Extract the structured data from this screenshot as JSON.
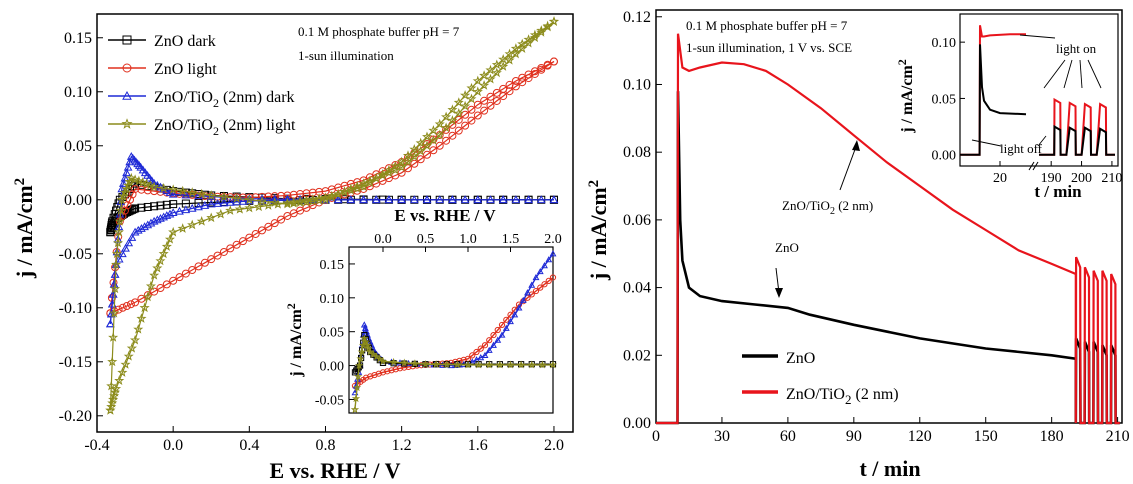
{
  "chart_data": [
    {
      "id": "left-main",
      "type": "scatter",
      "xlabel": "E vs. RHE / V",
      "ylabel": "j / mA/cm²",
      "xlim": [
        -0.4,
        2.1
      ],
      "ylim": [
        -0.215,
        0.172
      ],
      "xticks": [
        "-0.4",
        "0.0",
        "0.4",
        "0.8",
        "1.2",
        "1.6",
        "2.0"
      ],
      "xtick_values": [
        -0.4,
        0.0,
        0.4,
        0.8,
        1.2,
        1.6,
        2.0
      ],
      "yticks": [
        "-0.20",
        "-0.15",
        "-0.10",
        "-0.05",
        "0.00",
        "0.05",
        "0.10",
        "0.15"
      ],
      "ytick_values": [
        -0.2,
        -0.15,
        -0.1,
        -0.05,
        0.0,
        0.05,
        0.1,
        0.15
      ],
      "annotations": [
        "0.1 M phosphate buffer pH = 7",
        "1-sun illumination"
      ],
      "legend_position": "top-left",
      "series": [
        {
          "name": "ZnO dark",
          "color": "#000000",
          "marker": "square",
          "forward": [
            [
              -0.33,
              -0.03
            ],
            [
              -0.3,
              -0.018
            ],
            [
              -0.25,
              -0.012
            ],
            [
              -0.2,
              -0.008
            ],
            [
              0.0,
              -0.004
            ],
            [
              0.4,
              -0.001
            ],
            [
              0.8,
              0.0
            ],
            [
              1.2,
              0.0
            ],
            [
              1.6,
              0.0
            ],
            [
              2.0,
              0.0
            ]
          ],
          "reverse": [
            [
              2.0,
              0.0
            ],
            [
              1.2,
              0.0
            ],
            [
              0.6,
              0.001
            ],
            [
              0.2,
              0.004
            ],
            [
              0.0,
              0.008
            ],
            [
              -0.2,
              0.015
            ],
            [
              -0.28,
              0.0
            ],
            [
              -0.32,
              -0.02
            ],
            [
              -0.33,
              -0.03
            ]
          ]
        },
        {
          "name": "ZnO light",
          "color": "#e0301e",
          "marker": "circle",
          "forward": [
            [
              -0.33,
              -0.105
            ],
            [
              -0.2,
              -0.095
            ],
            [
              0.0,
              -0.075
            ],
            [
              0.2,
              -0.055
            ],
            [
              0.4,
              -0.035
            ],
            [
              0.6,
              -0.015
            ],
            [
              0.8,
              0.0
            ],
            [
              1.0,
              0.01
            ],
            [
              1.2,
              0.025
            ],
            [
              1.4,
              0.05
            ],
            [
              1.6,
              0.078
            ],
            [
              1.8,
              0.105
            ],
            [
              2.0,
              0.128
            ]
          ],
          "reverse": [
            [
              2.0,
              0.128
            ],
            [
              1.8,
              0.11
            ],
            [
              1.6,
              0.088
            ],
            [
              1.4,
              0.06
            ],
            [
              1.2,
              0.035
            ],
            [
              1.0,
              0.018
            ],
            [
              0.8,
              0.008
            ],
            [
              0.6,
              0.004
            ],
            [
              0.4,
              0.002
            ],
            [
              0.2,
              0.003
            ],
            [
              0.0,
              0.006
            ],
            [
              -0.2,
              0.01
            ],
            [
              -0.28,
              -0.02
            ],
            [
              -0.33,
              -0.105
            ]
          ]
        },
        {
          "name": "ZnO/TiO₂ (2nm) dark",
          "color": "#1f2ad6",
          "marker": "triangle",
          "forward": [
            [
              -0.33,
              -0.115
            ],
            [
              -0.3,
              -0.06
            ],
            [
              -0.27,
              0.01
            ],
            [
              -0.22,
              0.04
            ],
            [
              -0.17,
              0.03
            ],
            [
              -0.1,
              0.015
            ],
            [
              0.0,
              0.005
            ],
            [
              0.4,
              0.001
            ],
            [
              0.8,
              0.0
            ],
            [
              1.2,
              0.0
            ],
            [
              1.6,
              0.0
            ],
            [
              2.0,
              0.0
            ]
          ],
          "reverse": [
            [
              2.0,
              0.0
            ],
            [
              1.2,
              0.0
            ],
            [
              0.8,
              0.0
            ],
            [
              0.4,
              -0.001
            ],
            [
              0.2,
              -0.004
            ],
            [
              0.0,
              -0.012
            ],
            [
              -0.1,
              -0.02
            ],
            [
              -0.2,
              -0.03
            ],
            [
              -0.3,
              -0.06
            ],
            [
              -0.33,
              -0.115
            ]
          ]
        },
        {
          "name": "ZnO/TiO₂ (2nm) light",
          "color": "#8c8c1c",
          "marker": "star",
          "forward": [
            [
              -0.33,
              -0.195
            ],
            [
              -0.3,
              -0.06
            ],
            [
              -0.27,
              0.0
            ],
            [
              -0.22,
              0.02
            ],
            [
              -0.1,
              0.012
            ],
            [
              0.2,
              0.004
            ],
            [
              0.6,
              -0.004
            ],
            [
              0.8,
              0.0
            ],
            [
              1.0,
              0.015
            ],
            [
              1.2,
              0.03
            ],
            [
              1.4,
              0.06
            ],
            [
              1.6,
              0.1
            ],
            [
              1.8,
              0.135
            ],
            [
              2.0,
              0.165
            ]
          ],
          "reverse": [
            [
              2.0,
              0.165
            ],
            [
              1.8,
              0.14
            ],
            [
              1.6,
              0.11
            ],
            [
              1.4,
              0.07
            ],
            [
              1.2,
              0.035
            ],
            [
              1.0,
              0.012
            ],
            [
              0.8,
              0.002
            ],
            [
              0.6,
              -0.003
            ],
            [
              0.3,
              -0.01
            ],
            [
              0.0,
              -0.03
            ],
            [
              -0.1,
              -0.07
            ],
            [
              -0.2,
              -0.13
            ],
            [
              -0.3,
              -0.175
            ],
            [
              -0.33,
              -0.195
            ]
          ]
        }
      ]
    },
    {
      "id": "left-inset",
      "type": "scatter",
      "xlabel": "E vs. RHE / V",
      "ylabel": "j / mA/cm²",
      "xlim": [
        -0.4,
        2.0
      ],
      "ylim": [
        -0.07,
        0.175
      ],
      "xticks": [
        "0.0",
        "0.5",
        "1.0",
        "1.5",
        "2.0"
      ],
      "xtick_values": [
        0.0,
        0.5,
        1.0,
        1.5,
        2.0
      ],
      "yticks": [
        "-0.05",
        "0.00",
        "0.05",
        "0.10",
        "0.15"
      ],
      "ytick_values": [
        -0.05,
        0.0,
        0.05,
        0.1,
        0.15
      ],
      "series": [
        {
          "name": "red",
          "color": "#e0301e",
          "marker": "circle",
          "points": [
            [
              -0.33,
              -0.03
            ],
            [
              -0.2,
              -0.018
            ],
            [
              0.0,
              -0.01
            ],
            [
              0.2,
              -0.004
            ],
            [
              0.4,
              0.0
            ],
            [
              0.6,
              0.002
            ],
            [
              0.8,
              0.004
            ],
            [
              1.0,
              0.01
            ],
            [
              1.2,
              0.03
            ],
            [
              1.4,
              0.06
            ],
            [
              1.6,
              0.09
            ],
            [
              1.8,
              0.11
            ],
            [
              2.0,
              0.13
            ]
          ]
        },
        {
          "name": "blue",
          "color": "#1f2ad6",
          "marker": "triangle",
          "points": [
            [
              -0.33,
              -0.04
            ],
            [
              -0.27,
              0.0
            ],
            [
              -0.22,
              0.06
            ],
            [
              -0.17,
              0.04
            ],
            [
              -0.1,
              0.02
            ],
            [
              0.0,
              0.006
            ],
            [
              0.4,
              0.002
            ],
            [
              0.8,
              0.0
            ],
            [
              1.0,
              0.002
            ],
            [
              1.2,
              0.015
            ],
            [
              1.4,
              0.045
            ],
            [
              1.6,
              0.085
            ],
            [
              1.8,
              0.13
            ],
            [
              2.0,
              0.165
            ]
          ]
        },
        {
          "name": "black",
          "color": "#000000",
          "marker": "square",
          "points": [
            [
              -0.33,
              -0.01
            ],
            [
              -0.27,
              0.0
            ],
            [
              -0.22,
              0.045
            ],
            [
              -0.15,
              0.02
            ],
            [
              0.0,
              0.004
            ],
            [
              0.5,
              0.002
            ],
            [
              1.0,
              0.002
            ],
            [
              1.5,
              0.002
            ],
            [
              2.0,
              0.002
            ]
          ]
        },
        {
          "name": "olive",
          "color": "#8c8c1c",
          "marker": "star",
          "points": [
            [
              -0.33,
              -0.065
            ],
            [
              -0.28,
              0.0
            ],
            [
              -0.22,
              0.04
            ],
            [
              -0.15,
              0.02
            ],
            [
              0.0,
              0.006
            ],
            [
              0.5,
              0.002
            ],
            [
              1.0,
              0.001
            ],
            [
              1.5,
              0.001
            ],
            [
              2.0,
              0.001
            ]
          ]
        }
      ]
    },
    {
      "id": "right-main",
      "type": "line",
      "xlabel": "t / min",
      "ylabel": "j / mA/cm²",
      "xlim": [
        0,
        212
      ],
      "ylim": [
        0,
        0.122
      ],
      "xticks": [
        "0",
        "30",
        "60",
        "90",
        "120",
        "150",
        "180",
        "210"
      ],
      "xtick_values": [
        0,
        30,
        60,
        90,
        120,
        150,
        180,
        210
      ],
      "yticks": [
        "0.00",
        "0.02",
        "0.04",
        "0.06",
        "0.08",
        "0.10",
        "0.12"
      ],
      "ytick_values": [
        0.0,
        0.02,
        0.04,
        0.06,
        0.08,
        0.1,
        0.12
      ],
      "annotations": [
        "0.1 M phosphate buffer pH = 7",
        "1-sun illumination, 1 V vs. SCE",
        "ZnO/TiO₂ (2 nm)",
        "ZnO"
      ],
      "legend_position": "bottom-center",
      "series": [
        {
          "name": "ZnO",
          "color": "#000000",
          "points": [
            [
              0,
              0
            ],
            [
              9.8,
              0
            ],
            [
              10,
              0.098
            ],
            [
              11,
              0.06
            ],
            [
              12,
              0.048
            ],
            [
              15,
              0.04
            ],
            [
              20,
              0.0375
            ],
            [
              30,
              0.036
            ],
            [
              45,
              0.035
            ],
            [
              60,
              0.034
            ],
            [
              70,
              0.032
            ],
            [
              90,
              0.029
            ],
            [
              120,
              0.025
            ],
            [
              150,
              0.022
            ],
            [
              180,
              0.02
            ],
            [
              191,
              0.019
            ]
          ]
        },
        {
          "name": "ZnO/TiO₂ (2 nm)",
          "color": "#e8141c",
          "points": [
            [
              0,
              0
            ],
            [
              9.8,
              0
            ],
            [
              10,
              0.115
            ],
            [
              12,
              0.105
            ],
            [
              15,
              0.104
            ],
            [
              20,
              0.105
            ],
            [
              30,
              0.1065
            ],
            [
              40,
              0.106
            ],
            [
              50,
              0.104
            ],
            [
              60,
              0.1
            ],
            [
              75,
              0.093
            ],
            [
              90,
              0.085
            ],
            [
              105,
              0.077
            ],
            [
              120,
              0.07
            ],
            [
              135,
              0.063
            ],
            [
              150,
              0.057
            ],
            [
              165,
              0.051
            ],
            [
              180,
              0.047
            ],
            [
              191,
              0.044
            ]
          ]
        }
      ],
      "chopping": {
        "start": 191,
        "end": 210,
        "period": 4,
        "light_on": 2,
        "red_on": [
          0.046,
          0.043,
          0.042,
          0.042,
          0.041
        ],
        "black_on": [
          0.022,
          0.021,
          0.021,
          0.02,
          0.02
        ]
      }
    },
    {
      "id": "right-inset",
      "type": "line",
      "xlabel": "t / min",
      "ylabel": "j / mA/cm²",
      "ylim": [
        -0.01,
        0.125
      ],
      "xticks": [
        "20",
        "190",
        "200",
        "210"
      ],
      "yticks": [
        "0.00",
        "0.05",
        "0.10"
      ],
      "ytick_values": [
        0.0,
        0.05,
        0.1
      ],
      "annotations": [
        "light on",
        "light off"
      ],
      "segment1": {
        "xlim": [
          0,
          35
        ]
      },
      "segment2": {
        "xlim": [
          185,
          212
        ]
      },
      "series": [
        {
          "name": "ZnO/TiO₂ (2 nm)",
          "color": "#e8141c",
          "seg1": [
            [
              0,
              0
            ],
            [
              9.8,
              0
            ],
            [
              10,
              0.115
            ],
            [
              11,
              0.105
            ],
            [
              12,
              0.105
            ],
            [
              15,
              0.106
            ],
            [
              25,
              0.107
            ],
            [
              33,
              0.107
            ]
          ],
          "seg2_on": [
            0.046,
            0.043,
            0.042,
            0.042
          ]
        },
        {
          "name": "ZnO",
          "color": "#000000",
          "seg1": [
            [
              0,
              0
            ],
            [
              9.8,
              0
            ],
            [
              10,
              0.098
            ],
            [
              11,
              0.06
            ],
            [
              12,
              0.048
            ],
            [
              15,
              0.04
            ],
            [
              20,
              0.037
            ],
            [
              33,
              0.036
            ]
          ],
          "seg2_on": [
            0.022,
            0.021,
            0.021,
            0.02
          ]
        }
      ]
    }
  ],
  "legend_left": [
    {
      "text": "ZnO dark",
      "sub": "",
      "tail": ""
    },
    {
      "text": "ZnO light",
      "sub": "",
      "tail": ""
    },
    {
      "text": "ZnO/TiO",
      "sub": "2",
      "tail": " (2nm) dark"
    },
    {
      "text": "ZnO/TiO",
      "sub": "2",
      "tail": " (2nm) light"
    }
  ],
  "legend_right": [
    {
      "text": "ZnO",
      "sub": "",
      "tail": ""
    },
    {
      "text": "ZnO/TiO",
      "sub": "2",
      "tail": " (2 nm)"
    }
  ],
  "labels": {
    "left_note1": "0.1 M phosphate buffer pH = 7",
    "left_note2": "1-sun illumination",
    "right_note1": "0.1 M phosphate buffer pH = 7",
    "right_note2": "1-sun illumination, 1 V vs. SCE",
    "curve_label_red_a": "ZnO/TiO",
    "curve_label_red_sub": "2",
    "curve_label_red_b": " (2 nm)",
    "curve_label_black": "ZnO",
    "light_on": "light on",
    "light_off": "light off",
    "left_xlabel": "E vs. RHE / V",
    "left_ylabel": "j / mA/cm",
    "left_ylabel_sup": "2",
    "inset_xlabel": "E vs. RHE / V",
    "inset_ylabel": "j / mA/cm",
    "inset_ylabel_sup": "2",
    "right_xlabel": "t / min",
    "right_ylabel": "j / mA/cm",
    "right_ylabel_sup": "2",
    "rinset_xlabel": "t / min",
    "rinset_ylabel": "j / mA/cm",
    "rinset_ylabel_sup": "2"
  }
}
